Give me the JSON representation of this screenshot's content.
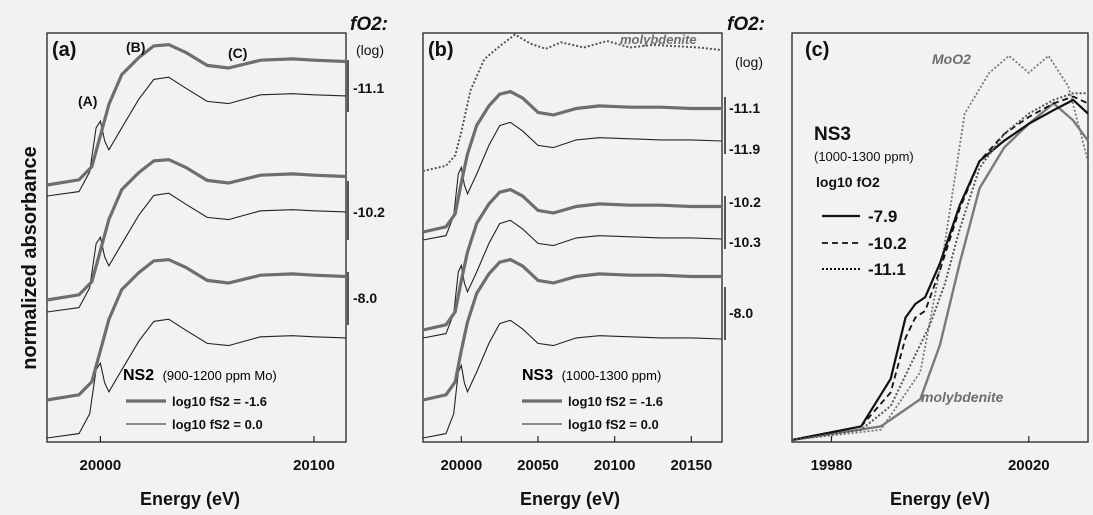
{
  "figure": {
    "ylabel": "normalized absorbance",
    "xlabel": "Energy (eV)"
  },
  "chart_data": [
    {
      "type": "line",
      "panel": "(a)",
      "xlabel": "Energy (eV)",
      "ylabel": "normalized absorbance",
      "xlim": [
        19975,
        20115
      ],
      "xticks": [
        20000,
        20100
      ],
      "feature_labels": [
        "(A)",
        "(B)",
        "(C)"
      ],
      "fo2_title": "fO2:",
      "fo2_unit": "(log)",
      "offset_groups": [
        {
          "log_fO2": "-11.1"
        },
        {
          "log_fO2": "-10.2"
        },
        {
          "log_fO2": "-8.0"
        }
      ],
      "sample": "NS2",
      "sample_detail": "(900-1200 ppm Mo)",
      "series": [
        {
          "name": "log10 fS2 = -1.6",
          "style": "thick",
          "color": "#6e6e6e",
          "x": [
            19975,
            19990,
            19996,
            20000,
            20004,
            20010,
            20018,
            20025,
            20032,
            20040,
            20050,
            20060,
            20075,
            20090,
            20100,
            20115
          ],
          "y": [
            0.0,
            0.04,
            0.14,
            0.38,
            0.62,
            0.85,
            0.98,
            1.07,
            1.08,
            1.02,
            0.92,
            0.9,
            0.96,
            0.97,
            0.96,
            0.95
          ]
        },
        {
          "name": "log10 fS2 = 0.0",
          "style": "thin",
          "color": "#222222",
          "x": [
            19975,
            19990,
            19995,
            19998,
            20000,
            20002,
            20004,
            20010,
            20018,
            20025,
            20032,
            20040,
            20050,
            20060,
            20075,
            20090,
            20100,
            20115
          ],
          "y": [
            0.0,
            0.04,
            0.22,
            0.62,
            0.68,
            0.5,
            0.42,
            0.62,
            0.88,
            1.06,
            1.08,
            0.98,
            0.86,
            0.84,
            0.92,
            0.93,
            0.92,
            0.91
          ]
        }
      ]
    },
    {
      "type": "line",
      "panel": "(b)",
      "xlabel": "Energy (eV)",
      "xlim": [
        19975,
        20170
      ],
      "xticks": [
        20000,
        20050,
        20100,
        20150
      ],
      "fo2_title": "fO2:",
      "fo2_unit": "(log)",
      "offset_groups": [
        {
          "log_fO2": [
            "-11.1",
            "-11.9"
          ]
        },
        {
          "log_fO2": [
            "-10.2",
            "-10.3"
          ]
        },
        {
          "log_fO2": [
            "-8.0"
          ]
        }
      ],
      "reference": {
        "name": "molybdenite",
        "style": "dotted",
        "x": [
          19975,
          19990,
          19996,
          20000,
          20006,
          20015,
          20025,
          20035,
          20045,
          20055,
          20065,
          20080,
          20095,
          20110,
          20125,
          20140,
          20155,
          20170
        ],
        "y": [
          0.0,
          0.04,
          0.12,
          0.3,
          0.62,
          0.86,
          0.96,
          1.05,
          0.98,
          0.94,
          0.99,
          0.95,
          1.0,
          0.95,
          0.97,
          0.96,
          0.95,
          0.93
        ]
      },
      "sample": "NS3",
      "sample_detail": "(1000-1300 ppm)",
      "series": [
        {
          "name": "log10 fS2 = -1.6",
          "style": "thick",
          "color": "#6e6e6e",
          "x": [
            19975,
            19990,
            19996,
            20000,
            20004,
            20010,
            20018,
            20025,
            20032,
            20040,
            20050,
            20060,
            20075,
            20090,
            20110,
            20130,
            20150,
            20170
          ],
          "y": [
            0.0,
            0.04,
            0.14,
            0.38,
            0.6,
            0.82,
            0.97,
            1.06,
            1.08,
            1.03,
            0.92,
            0.9,
            0.95,
            0.97,
            0.96,
            0.96,
            0.95,
            0.95
          ]
        },
        {
          "name": "log10 fS2 = 0.0",
          "style": "thin",
          "color": "#222222",
          "x": [
            19975,
            19990,
            19995,
            19998,
            20000,
            20002,
            20004,
            20010,
            20018,
            20025,
            20032,
            20040,
            20050,
            20060,
            20075,
            20090,
            20110,
            20130,
            20150,
            20170
          ],
          "y": [
            0.0,
            0.04,
            0.22,
            0.6,
            0.66,
            0.5,
            0.42,
            0.6,
            0.86,
            1.04,
            1.07,
            0.99,
            0.86,
            0.84,
            0.91,
            0.93,
            0.92,
            0.91,
            0.91,
            0.9
          ]
        }
      ]
    },
    {
      "type": "line",
      "panel": "(c)",
      "xlabel": "Energy (eV)",
      "xlim": [
        19972,
        20032
      ],
      "ylim": [
        0,
        1.05
      ],
      "xticks": [
        19980,
        20020
      ],
      "sample": "NS3",
      "sample_detail": "(1000-1300 ppm)",
      "legend_title": "log10 fO2",
      "references": [
        {
          "name": "MoO2",
          "style": "dotted-grey",
          "x": [
            19972,
            19990,
            19998,
            20003,
            20007,
            20012,
            20016,
            20020,
            20024,
            20028,
            20032
          ],
          "y": [
            0.0,
            0.03,
            0.2,
            0.58,
            0.96,
            1.08,
            1.13,
            1.08,
            1.13,
            1.04,
            0.82
          ]
        },
        {
          "name": "molybdenite",
          "style": "solid-grey",
          "x": [
            19972,
            19990,
            19998,
            20002,
            20006,
            20010,
            20015,
            20020,
            20025,
            20029,
            20032
          ],
          "y": [
            0.0,
            0.04,
            0.12,
            0.28,
            0.52,
            0.74,
            0.86,
            0.93,
            0.99,
            0.94,
            0.88
          ]
        }
      ],
      "series": [
        {
          "name": "-7.9",
          "style": "solid",
          "x": [
            19972,
            19986,
            19992,
            19995,
            19997,
            19999,
            20002,
            20006,
            20010,
            20015,
            20020,
            20025,
            20029,
            20032
          ],
          "y": [
            0.0,
            0.04,
            0.18,
            0.36,
            0.4,
            0.42,
            0.52,
            0.69,
            0.82,
            0.88,
            0.93,
            0.97,
            1.0,
            0.96
          ]
        },
        {
          "name": "-10.2",
          "style": "dashed",
          "x": [
            19972,
            19986,
            19992,
            19995,
            19997,
            19999,
            20002,
            20006,
            20010,
            20015,
            20020,
            20025,
            20029,
            20032
          ],
          "y": [
            0.0,
            0.04,
            0.14,
            0.3,
            0.36,
            0.38,
            0.5,
            0.68,
            0.82,
            0.9,
            0.95,
            0.99,
            1.01,
            0.99
          ]
        },
        {
          "name": "-11.1",
          "style": "dotted",
          "x": [
            19972,
            19986,
            19992,
            19996,
            20000,
            20003,
            20006,
            20010,
            20015,
            20020,
            20025,
            20029,
            20032
          ],
          "y": [
            0.0,
            0.03,
            0.1,
            0.22,
            0.34,
            0.46,
            0.62,
            0.8,
            0.9,
            0.96,
            1.0,
            1.02,
            1.02
          ]
        }
      ]
    }
  ]
}
